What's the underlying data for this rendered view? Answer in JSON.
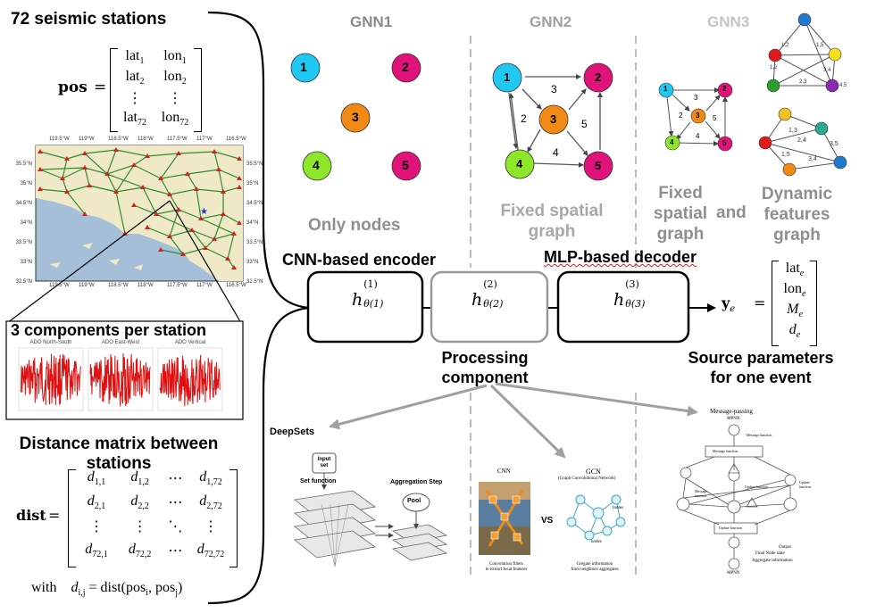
{
  "left_panel": {
    "stations_title": "72 seismic stations",
    "pos_symbol": "pos",
    "pos_rows": [
      [
        "lat",
        "1",
        "lon",
        "1"
      ],
      [
        "lat",
        "2",
        "lon",
        "2"
      ],
      [
        "⋮",
        "",
        "⋮",
        ""
      ],
      [
        "lat",
        "72",
        "lon",
        "72"
      ]
    ],
    "map_lon_ticks": [
      "119.5°W",
      "119°W",
      "118.5°W",
      "118°W",
      "117.5°W",
      "117°W",
      "116.5°W"
    ],
    "map_lat_ticks": [
      "35.5°N",
      "35°N",
      "34.5°N",
      "34°N",
      "33.5°N",
      "33°N",
      "32.5°N"
    ],
    "components_title": "3 components per station",
    "waveform_titles": [
      "ADO North-South",
      "ADO East-West",
      "ADO Vertical"
    ],
    "distance_title_line1": "Distance matrix between",
    "distance_title_line2": "stations",
    "dist_symbol": "dist",
    "dist_rows": [
      [
        "d",
        "1,1",
        "d",
        "1,2",
        "⋯",
        "d",
        "1,72"
      ],
      [
        "d",
        "2,1",
        "d",
        "2,2",
        "⋯",
        "d",
        "2,72"
      ],
      [
        "⋮",
        "",
        "⋮",
        "",
        "⋱",
        "⋮",
        ""
      ],
      [
        "d",
        "72,1",
        "d",
        "72,2",
        "⋯",
        "d",
        "72,72"
      ]
    ],
    "with_text": "with",
    "formula": "d",
    "formula_sub": "i,j",
    "formula_rhs": " = dist(pos",
    "formula_sub2": "i",
    "formula_mid": ", pos",
    "formula_sub3": "j",
    "formula_end": ")"
  },
  "gnn": {
    "gnn1_title": "GNN1",
    "gnn2_title": "GNN2",
    "gnn3_title": "GNN3",
    "gnn1_caption": "Only nodes",
    "gnn2_caption_line1": "Fixed spatial",
    "gnn2_caption_line2": "graph",
    "gnn3_caption_a_line1": "Fixed",
    "gnn3_caption_a_line2": "spatial",
    "gnn3_caption_a_line3": "graph",
    "gnn3_caption_and": "and",
    "gnn3_caption_b_line1": "Dynamic",
    "gnn3_caption_b_line2": "features",
    "gnn3_caption_b_line3": "graph",
    "node_labels": [
      "1",
      "2",
      "3",
      "4",
      "5"
    ],
    "edge_labels": [
      "3",
      "2",
      "5",
      "4"
    ],
    "dyn_edge_labels_top": [
      "1,2",
      "1,5",
      "1,2",
      "3,4",
      "2,3",
      "4,5"
    ],
    "dyn_edge_labels_bottom": [
      "1,3",
      "2,4",
      "3,5",
      "1,5",
      "3,4"
    ],
    "colors": {
      "node1": "#1ec8f0",
      "node2": "#e0137a",
      "node3": "#f08a14",
      "node4": "#8ee62a",
      "node5": "#e0137a"
    }
  },
  "pipeline": {
    "encoder_title": "CNN-based encoder",
    "decoder_title": "MLP-based decoder",
    "h_symbol": "h",
    "h1_sup": "(1)",
    "h1_sub": "θ(1)",
    "h2_sup": "(2)",
    "h2_sub": "θ(2)",
    "h3_sup": "(3)",
    "h3_sub": "θ(3)",
    "processing_line1": "Processing",
    "processing_line2": "component",
    "output_symbol": "y",
    "output_sub": "e",
    "output_rows": [
      [
        "lat",
        "e"
      ],
      [
        "lon",
        "e"
      ],
      [
        "M",
        "e"
      ],
      [
        "d",
        "e"
      ]
    ],
    "source_line1": "Source parameters",
    "source_line2": "for one event"
  },
  "bottom": {
    "deepsets_title": "DeepSets",
    "input_set": "Input set",
    "set_function": "Set function",
    "aggregation_step": "Aggregation Step",
    "pool": "Pool",
    "cnn_label": "CNN",
    "gcn_label": "GCN",
    "gcn_sub": "(Graph Convolutional Network)",
    "vs": "VS",
    "cnn_caption_line1": "Convolution filters",
    "cnn_caption_line2": "to extract local features",
    "gcn_caption_line1": "Gregate information",
    "gcn_caption_line2": "from neighbors aggregates",
    "gcn_notes": "1notes",
    "gcn_nodes": "nodes",
    "mp_title": "Message-passing",
    "mpnn": "MPNN",
    "mp_message_function": "Message function",
    "mp_update_function": "Update function",
    "mp_output": "Output",
    "mp_final1": "Final Node state",
    "mp_final2": "Aggregate information",
    "mp_bottom": "MPNN"
  }
}
